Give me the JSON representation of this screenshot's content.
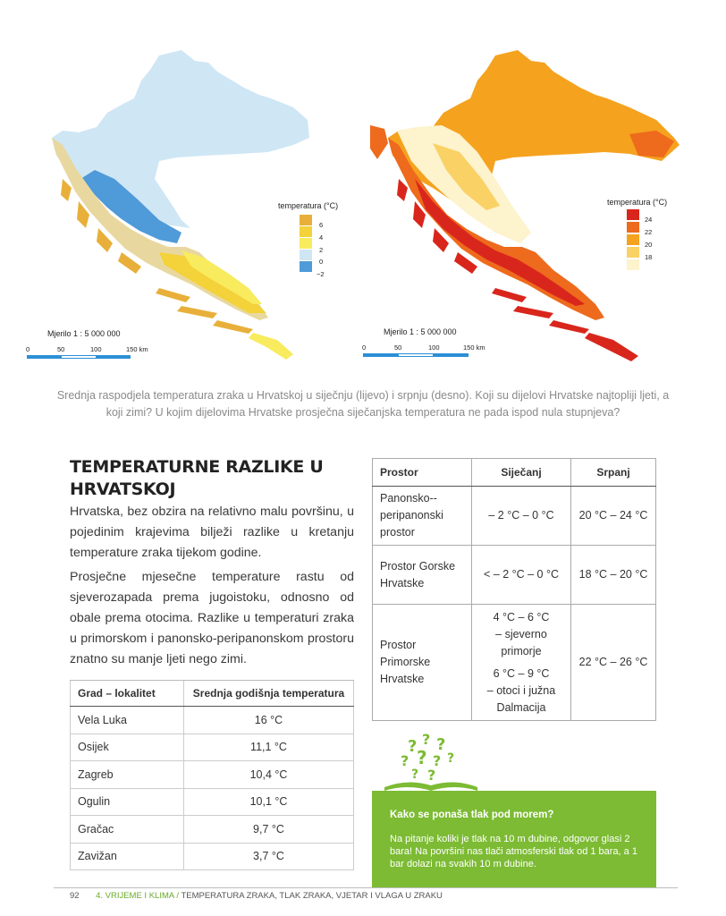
{
  "maps": {
    "left": {
      "legend_title": "temperatura (°C)",
      "legend": [
        {
          "label": "6",
          "color": "#e8b03a"
        },
        {
          "label": "4",
          "color": "#f3d23a"
        },
        {
          "label": "2",
          "color": "#f8eb5e"
        },
        {
          "label": "0",
          "color": "#cfe6f5"
        },
        {
          "label": "−2",
          "color": "#4f9ad8"
        }
      ],
      "scale_label": "Mjerilo 1 : 5 000 000",
      "scale_ticks": [
        "0",
        "50",
        "100",
        "150 km"
      ]
    },
    "right": {
      "legend_title": "temperatura (°C)",
      "legend": [
        {
          "label": "24",
          "color": "#d9261c"
        },
        {
          "label": "22",
          "color": "#ee6a1c"
        },
        {
          "label": "20",
          "color": "#f5a21e"
        },
        {
          "label": "18",
          "color": "#f9d165"
        },
        {
          "label": "",
          "color": "#fdf3cc"
        }
      ],
      "scale_label": "Mjerilo 1 : 5 000 000",
      "scale_ticks": [
        "0",
        "50",
        "100",
        "150 km"
      ]
    }
  },
  "caption": "Srednja raspodjela temperatura zraka u Hrvatskoj u siječnju (lijevo) i srpnju (desno). Koji su dijelovi Hrvatske najtopliji ljeti, a koji zimi? U kojim dijelovima Hrvatske prosječna siječanjska temperatura ne pada ispod nula stupnjeva?",
  "section": {
    "heading": "TEMPERATURNE RAZLIKE U HRVATSKOJ",
    "para1": "Hrvatska, bez obzira na relativno malu površinu, u pojedinim krajevima bilježi razlike u kretanju temperature zraka tijekom godine.",
    "para2": "Prosječne mjesečne temperature rastu od sjeverozapada prema jugoistoku, odnosno od obale prema otocima. Razlike u temperaturi zraka u primorskom i panonsko-peripanonskom prostoru znatno su manje ljeti nego zimi."
  },
  "cities_table": {
    "headers": [
      "Grad – lokalitet",
      "Srednja godišnja temperatura"
    ],
    "rows": [
      [
        "Vela Luka",
        "16 °C"
      ],
      [
        "Osijek",
        "11,1 °C"
      ],
      [
        "Zagreb",
        "10,4 °C"
      ],
      [
        "Ogulin",
        "10,1 °C"
      ],
      [
        "Gračac",
        "9,7 °C"
      ],
      [
        "Zavižan",
        "3,7 °C"
      ]
    ]
  },
  "regions_table": {
    "headers": [
      "Prostor",
      "Siječanj",
      "Srpanj"
    ],
    "r1": {
      "name": "Panonsko--peripanonski prostor",
      "jan": "– 2 °C – 0 °C",
      "jul": "20 °C – 24 °C"
    },
    "r2": {
      "name": "Prostor Gorske Hrvatske",
      "jan": "< – 2 °C – 0 °C",
      "jul": "18 °C – 20 °C"
    },
    "r3": {
      "name": "Prostor Primorske Hrvatske",
      "jan_a_val": "4 °C – 6 °C",
      "jan_a_desc": "– sjeverno primorje",
      "jan_b_val": "6 °C – 9 °C",
      "jan_b_desc": "– otoci i južna Dalmacija",
      "jul": "22 °C – 26 °C"
    }
  },
  "info_box": {
    "title": "Kako se ponaša tlak pod morem?",
    "text": "Na pitanje koliki je tlak na 10 m dubine, odgovor glasi 2 bara! Na površini nas tlači atmosferski tlak od 1 bara, a 1 bar dolazi na svakih 10 m dubine."
  },
  "footer": {
    "page": "92",
    "chapter": "4. VRIJEME I KLIMA",
    "separator": "/",
    "topic": "TEMPERATURA ZRAKA, TLAK ZRAKA, VJETAR I VLAGA U ZRAKU"
  }
}
